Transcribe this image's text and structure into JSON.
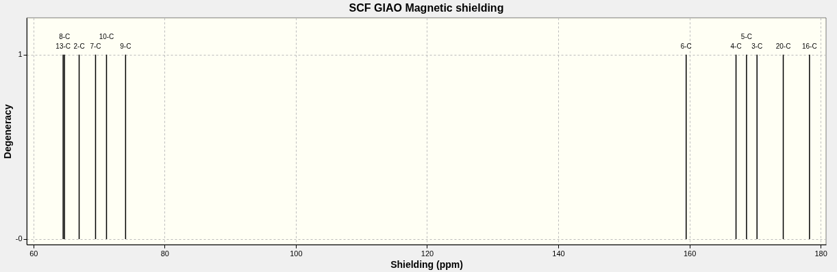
{
  "chart_data": {
    "type": "bar",
    "title": "SCF GIAO Magnetic shielding",
    "xlabel": "Shielding (ppm)",
    "ylabel": "Degeneracy",
    "x": [
      64.53,
      64.74,
      66.97,
      69.47,
      71.14,
      74.05,
      159.5,
      167.1,
      168.7,
      170.3,
      174.3,
      178.3
    ],
    "series": [
      {
        "color": "#000000",
        "values": [
          1,
          1,
          1,
          1,
          1,
          1,
          1,
          1,
          1,
          1,
          1,
          1
        ]
      }
    ],
    "annotations": [
      {
        "text": "13-C",
        "x": 64.53,
        "y": 1
      },
      {
        "text": "8-C",
        "x": 64.74,
        "y": 1
      },
      {
        "text": "2-C",
        "x": 66.97,
        "y": 1
      },
      {
        "text": "7-C",
        "x": 69.47,
        "y": 1
      },
      {
        "text": "10-C",
        "x": 71.14,
        "y": 1
      },
      {
        "text": "9-C",
        "x": 74.05,
        "y": 1
      },
      {
        "text": "6-C",
        "x": 159.5,
        "y": 1
      },
      {
        "text": "4-C",
        "x": 167.1,
        "y": 1
      },
      {
        "text": "5-C",
        "x": 168.7,
        "y": 1
      },
      {
        "text": "3-C",
        "x": 170.3,
        "y": 1
      },
      {
        "text": "20-C",
        "x": 174.3,
        "y": 1
      },
      {
        "text": "16-C",
        "x": 178.3,
        "y": 1
      }
    ],
    "xlim": [
      59.5,
      180.3
    ],
    "xticks": [
      60,
      80,
      100,
      120,
      140,
      160,
      180
    ],
    "ylim": [
      -0.03,
      1.2
    ],
    "yticks": [
      {
        "value": 0,
        "label": "-0"
      },
      1
    ],
    "grid": true,
    "legend": false
  }
}
